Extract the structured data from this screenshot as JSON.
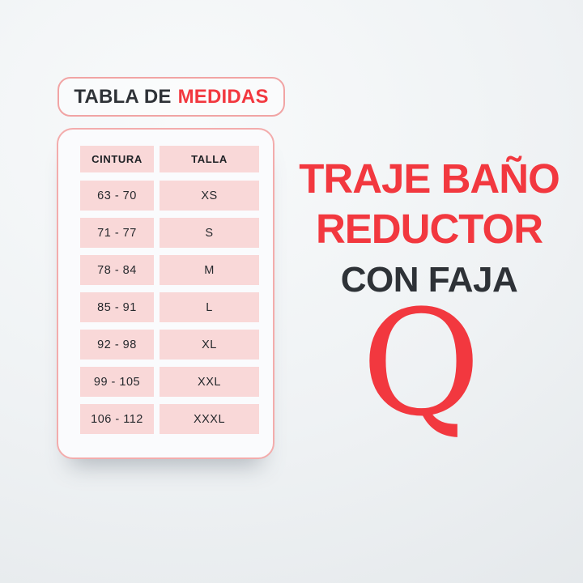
{
  "colors": {
    "accent_red": "#f2383f",
    "dark_text": "#2e3237",
    "cell_pink": "#f9d8d8",
    "border_pink": "#f1a4a4",
    "card_background": "#fafbfd",
    "page_background": "#eef1f3"
  },
  "title_box": {
    "prefix": "TABLA DE",
    "highlight": "MEDIDAS"
  },
  "size_table": {
    "headers": {
      "cintura": "CINTURA",
      "talla": "TALLA"
    },
    "rows": [
      {
        "cintura": "63 - 70",
        "talla": "XS"
      },
      {
        "cintura": "71 - 77",
        "talla": "S"
      },
      {
        "cintura": "78 - 84",
        "talla": "M"
      },
      {
        "cintura": "85 - 91",
        "talla": "L"
      },
      {
        "cintura": "92 - 98",
        "talla": "XL"
      },
      {
        "cintura": "99 - 105",
        "talla": "XXL"
      },
      {
        "cintura": "106 - 112",
        "talla": "XXXL"
      }
    ]
  },
  "promo": {
    "line1": "TRAJE BAÑO",
    "line2": "REDUCTOR",
    "line3": "CON FAJA"
  },
  "brand": {
    "letter": "Q"
  }
}
